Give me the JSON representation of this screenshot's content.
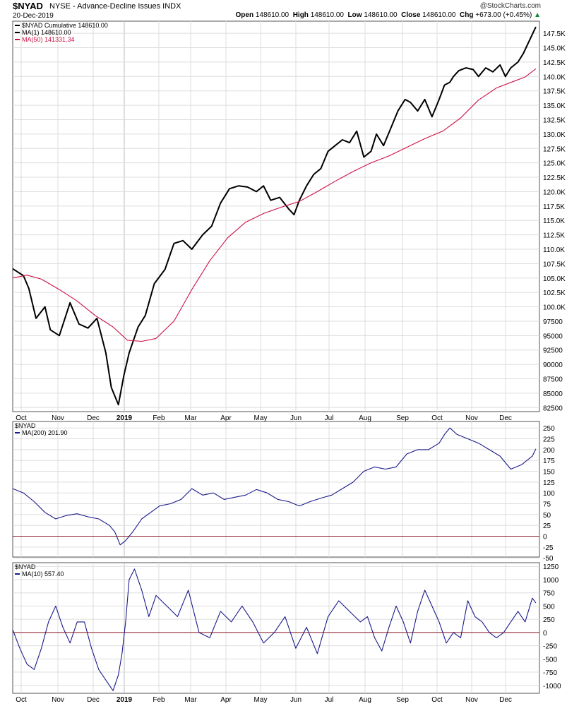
{
  "header": {
    "symbol": "$NYAD",
    "name": "NYSE - Advance-Decline Issues INDX",
    "date": "20-Dec-2019",
    "logo": "@StockCharts.com",
    "open_label": "Open",
    "open": "148610.00",
    "high_label": "High",
    "high": "148610.00",
    "low_label": "Low",
    "low": "148610.00",
    "close_label": "Close",
    "close": "148610.00",
    "chg_label": "Chg",
    "chg": "+673.00 (+0.45%)",
    "chg_arrow": "▲"
  },
  "colors": {
    "price": "#000000",
    "ma50": "#cc1144",
    "indicator": "#1a1a8c",
    "zero": "#8b1a2a",
    "grid": "#dddddd"
  },
  "chart_data": [
    {
      "type": "line",
      "legend": [
        "$NYAD Cumulative 148610.00",
        "MA(1) 148610.00",
        "MA(50) 141331.34"
      ],
      "x_ticks": [
        "Oct",
        "Nov",
        "Dec",
        "2019",
        "Feb",
        "Mar",
        "Apr",
        "May",
        "Jun",
        "Jul",
        "Aug",
        "Sep",
        "Oct",
        "Nov",
        "Dec"
      ],
      "y_ticks": [
        "147.5K",
        "145.0K",
        "142.5K",
        "140.0K",
        "137.5K",
        "135.0K",
        "132.5K",
        "130.0K",
        "127.5K",
        "125.0K",
        "122.5K",
        "120.0K",
        "117.5K",
        "115.0K",
        "112.5K",
        "110.0K",
        "107.5K",
        "105.0K",
        "102.5K",
        "100.0K",
        "97500",
        "95000",
        "92500",
        "90000",
        "87500",
        "85000",
        "82500"
      ],
      "ylim": [
        81800,
        149600
      ],
      "x_range": [
        0,
        14.7
      ],
      "series": [
        {
          "name": "$NYAD Cumulative",
          "x": [
            0,
            0.3,
            0.45,
            0.65,
            0.9,
            1.05,
            1.3,
            1.6,
            1.85,
            2.1,
            2.35,
            2.6,
            2.75,
            2.95,
            3.1,
            3.25,
            3.5,
            3.7,
            3.95,
            4.25,
            4.5,
            4.75,
            5.0,
            5.3,
            5.55,
            5.8,
            6.05,
            6.3,
            6.55,
            6.8,
            7.0,
            7.2,
            7.45,
            7.7,
            7.85,
            8.0,
            8.2,
            8.4,
            8.6,
            8.8,
            9.0,
            9.2,
            9.4,
            9.6,
            9.8,
            10.0,
            10.15,
            10.35,
            10.55,
            10.75,
            10.95,
            11.1,
            11.3,
            11.5,
            11.7,
            11.9,
            12.05,
            12.2,
            12.3,
            12.45,
            12.65,
            12.85,
            13.0,
            13.2,
            13.4,
            13.6,
            13.75,
            13.9,
            14.1,
            14.25,
            14.4,
            14.6
          ],
          "y": [
            106600,
            105400,
            103200,
            98000,
            100000,
            96000,
            95000,
            100700,
            97000,
            96300,
            98000,
            92000,
            86000,
            83000,
            88000,
            92000,
            96500,
            98500,
            104000,
            106500,
            111000,
            111500,
            110000,
            112500,
            114000,
            118000,
            120500,
            121000,
            120800,
            120000,
            121000,
            118500,
            119000,
            117000,
            116000,
            118500,
            121000,
            123000,
            124000,
            127000,
            128000,
            129000,
            128500,
            130500,
            126000,
            127000,
            130000,
            128000,
            131000,
            134000,
            136000,
            135500,
            134000,
            136000,
            133000,
            136000,
            138500,
            139000,
            140000,
            141000,
            141500,
            141200,
            140000,
            141500,
            140800,
            142000,
            140000,
            141500,
            142500,
            144000,
            146000,
            148610
          ]
        },
        {
          "name": "MA(50)",
          "x": [
            0,
            0.4,
            0.8,
            1.3,
            1.8,
            2.3,
            2.8,
            3.2,
            3.6,
            4.0,
            4.5,
            5.0,
            5.5,
            6.0,
            6.5,
            7.0,
            7.5,
            8.0,
            8.5,
            9.0,
            9.5,
            10.0,
            10.5,
            11.0,
            11.5,
            12.0,
            12.5,
            13.0,
            13.5,
            14.0,
            14.3,
            14.6
          ],
          "y": [
            105000,
            105500,
            104800,
            103000,
            101000,
            98500,
            96500,
            94200,
            94000,
            94500,
            97500,
            103000,
            108000,
            112000,
            114700,
            116200,
            117300,
            118300,
            120000,
            121800,
            123500,
            125000,
            126200,
            127700,
            129200,
            130500,
            132800,
            135900,
            138000,
            139200,
            139900,
            141331
          ]
        }
      ]
    },
    {
      "type": "line",
      "legend": [
        "$NYAD",
        "MA(200) 201.90"
      ],
      "x_ticks": [],
      "y_ticks": [
        "250",
        "225",
        "200",
        "175",
        "150",
        "125",
        "100",
        "75",
        "50",
        "25",
        "0",
        "-25",
        "-50"
      ],
      "ylim": [
        -48,
        265
      ],
      "x_range": [
        0,
        14.7
      ],
      "reference_line": 0,
      "series": [
        {
          "name": "MA(200)",
          "x": [
            0,
            0.3,
            0.6,
            0.9,
            1.2,
            1.5,
            1.8,
            2.1,
            2.4,
            2.7,
            2.85,
            3.0,
            3.15,
            3.35,
            3.6,
            3.85,
            4.1,
            4.4,
            4.7,
            5.0,
            5.3,
            5.6,
            5.9,
            6.2,
            6.5,
            6.8,
            7.1,
            7.4,
            7.7,
            8.0,
            8.3,
            8.6,
            8.9,
            9.2,
            9.5,
            9.8,
            10.1,
            10.4,
            10.7,
            11.0,
            11.3,
            11.6,
            11.9,
            12.05,
            12.2,
            12.4,
            12.7,
            13.0,
            13.3,
            13.6,
            13.9,
            14.2,
            14.5,
            14.6
          ],
          "y": [
            110,
            100,
            80,
            55,
            40,
            48,
            52,
            45,
            40,
            25,
            10,
            -20,
            -10,
            10,
            40,
            55,
            70,
            75,
            85,
            110,
            95,
            100,
            85,
            90,
            95,
            108,
            100,
            85,
            80,
            70,
            80,
            88,
            95,
            110,
            125,
            150,
            160,
            155,
            160,
            190,
            200,
            200,
            215,
            235,
            250,
            235,
            225,
            215,
            200,
            185,
            155,
            165,
            185,
            201.9
          ]
        }
      ]
    },
    {
      "type": "line",
      "legend": [
        "$NYAD",
        "MA(10) 557.40"
      ],
      "x_ticks": [
        "Oct",
        "Nov",
        "Dec",
        "2019",
        "Feb",
        "Mar",
        "Apr",
        "May",
        "Jun",
        "Jul",
        "Aug",
        "Sep",
        "Oct",
        "Nov",
        "Dec"
      ],
      "y_ticks": [
        "1250",
        "1000",
        "750",
        "500",
        "250",
        "0",
        "-250",
        "-500",
        "-750",
        "-1000"
      ],
      "ylim": [
        -1150,
        1320
      ],
      "x_range": [
        0,
        14.7
      ],
      "reference_line": 0,
      "series": [
        {
          "name": "MA(10)",
          "x": [
            0,
            0.2,
            0.4,
            0.6,
            0.8,
            1.0,
            1.2,
            1.4,
            1.6,
            1.8,
            2.0,
            2.2,
            2.4,
            2.6,
            2.8,
            2.95,
            3.05,
            3.15,
            3.25,
            3.4,
            3.6,
            3.8,
            4.0,
            4.3,
            4.6,
            4.9,
            5.2,
            5.5,
            5.8,
            6.1,
            6.4,
            6.7,
            7.0,
            7.3,
            7.6,
            7.9,
            8.2,
            8.5,
            8.8,
            9.1,
            9.4,
            9.7,
            9.9,
            10.1,
            10.3,
            10.5,
            10.7,
            10.9,
            11.1,
            11.3,
            11.5,
            11.7,
            11.9,
            12.1,
            12.3,
            12.5,
            12.7,
            12.9,
            13.1,
            13.3,
            13.5,
            13.7,
            13.9,
            14.1,
            14.3,
            14.5,
            14.6
          ],
          "y": [
            50,
            -300,
            -600,
            -700,
            -300,
            200,
            500,
            100,
            -200,
            200,
            200,
            -300,
            -700,
            -900,
            -1100,
            -800,
            -400,
            200,
            1000,
            1200,
            800,
            300,
            700,
            500,
            300,
            800,
            0,
            -100,
            400,
            200,
            500,
            200,
            -200,
            0,
            300,
            -300,
            100,
            -400,
            300,
            600,
            400,
            200,
            300,
            -100,
            -350,
            100,
            500,
            200,
            -200,
            400,
            800,
            500,
            200,
            -200,
            0,
            -100,
            600,
            300,
            200,
            0,
            -100,
            0,
            200,
            400,
            200,
            650,
            557.4
          ]
        }
      ]
    }
  ]
}
